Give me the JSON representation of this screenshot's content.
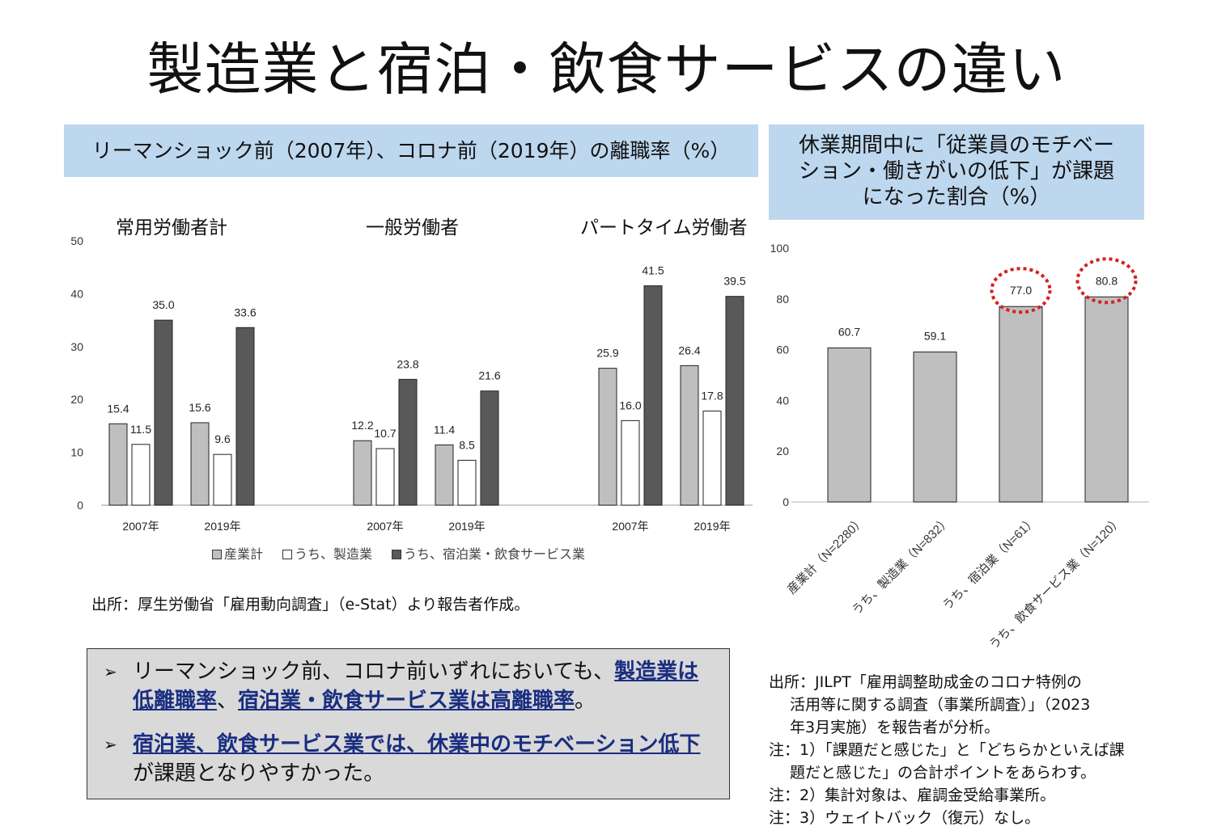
{
  "title": "製造業と宿泊・飲食サービスの違い",
  "left_header": "リーマンショック前（2007年）、コロナ前（2019年）の離職率（%）",
  "right_header": [
    "休業期間中に「従業員のモチベー",
    "ション・働きがいの低下」が課題",
    "になった割合（%）"
  ],
  "source_left": "出所：厚生労働省「雇用動向調査」（e-Stat）より報告者作成。",
  "bullets": [
    {
      "parts": [
        {
          "t": "リーマンショック前、コロナ前いずれにおいても、",
          "u": false
        },
        {
          "t": "製造業は低離職率",
          "u": true
        },
        {
          "t": "、",
          "u": false
        },
        {
          "t": "宿泊業・飲食サービス業は高離職率",
          "u": true
        },
        {
          "t": "。",
          "u": false
        }
      ]
    },
    {
      "parts": [
        {
          "t": "宿泊業、飲食サービス業では、休業中のモチベーション低下",
          "u": true
        },
        {
          "t": "が課題となりやすかった。",
          "u": false
        }
      ]
    }
  ],
  "notes": [
    {
      "t": "出所：JILPT「雇用調整助成金のコロナ特例の",
      "ind": false
    },
    {
      "t": "活用等に関する調査（事業所調査）」（2023",
      "ind": true
    },
    {
      "t": "年3月実施）を報告者が分析。",
      "ind": true
    },
    {
      "t": "注：1）「課題だと感じた」と「どちらかといえば課",
      "ind": false
    },
    {
      "t": "題だと感じた」の合計ポイントをあらわす。",
      "ind": true
    },
    {
      "t": "注：2）集計対象は、雇調金受給事業所。",
      "ind": false
    },
    {
      "t": "注：3）ウェイトバック（復元）なし。",
      "ind": false
    }
  ],
  "colors": {
    "sangyo": "#bfbfbf",
    "seizo": "#ffffff",
    "shukuhaku": "#595959",
    "header_bg": "#bdd7ee",
    "highlight": "#d42020"
  },
  "chart_data": [
    {
      "type": "bar",
      "title": "リーマンショック前（2007年）、コロナ前（2019年）の離職率（%）",
      "ylim": [
        0,
        50
      ],
      "yticks": [
        0,
        10,
        20,
        30,
        40,
        50
      ],
      "legend": [
        "産業計",
        "うち、製造業",
        "うち、宿泊業・飲食サービス業"
      ],
      "legend_position": "bottom",
      "panels": [
        {
          "title": "常用労働者計",
          "categories": [
            "2007年",
            "2019年"
          ],
          "series": [
            [
              15.4,
              15.6
            ],
            [
              11.5,
              9.6
            ],
            [
              35.0,
              33.6
            ]
          ]
        },
        {
          "title": "一般労働者",
          "categories": [
            "2007年",
            "2019年"
          ],
          "series": [
            [
              12.2,
              11.4
            ],
            [
              10.7,
              8.5
            ],
            [
              23.8,
              21.6
            ]
          ]
        },
        {
          "title": "パートタイム労働者",
          "categories": [
            "2007年",
            "2019年"
          ],
          "series": [
            [
              25.9,
              26.4
            ],
            [
              16.0,
              17.8
            ],
            [
              41.5,
              39.5
            ]
          ]
        }
      ]
    },
    {
      "type": "bar",
      "title": "休業期間中に「従業員のモチベーション・働きがいの低下」が課題になった割合（%）",
      "ylim": [
        0,
        100
      ],
      "yticks": [
        0,
        20,
        40,
        60,
        80,
        100
      ],
      "categories": [
        "産業計（N=2280）",
        "うち、製造業（N=832）",
        "うち、宿泊業（N=61）",
        "うち、飲食サービス業（N=120）"
      ],
      "values": [
        60.7,
        59.1,
        77.0,
        80.8
      ],
      "highlighted": [
        false,
        false,
        true,
        true
      ]
    }
  ]
}
